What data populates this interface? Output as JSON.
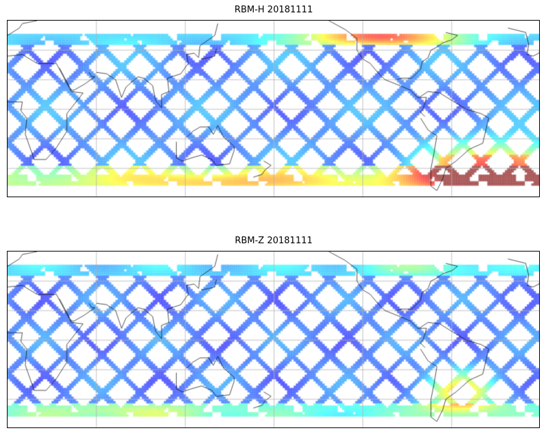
{
  "figure": {
    "panels": [
      {
        "title": "RBM-H 20181111",
        "field": "H"
      },
      {
        "title": "RBM-Z 20181111",
        "field": "Z"
      }
    ]
  },
  "chart_data": {
    "type": "heatmap",
    "projection": "plate carree",
    "lon_range": [
      0,
      360
    ],
    "lat_range": [
      -60,
      60
    ],
    "data_lat_extent": [
      -51,
      52
    ],
    "gridlines_lon": [
      60,
      120,
      180,
      240,
      300
    ],
    "gridlines_lat": [
      -40,
      -20,
      0,
      20,
      40
    ],
    "colormap": "jet",
    "alpha": 0.6,
    "panels": [
      {
        "title": "RBM-H 20181111",
        "high_regions": [
          "South Atlantic 30S-50S",
          "Southern band south of 40S",
          "North Pacific/N. America 45N-52N"
        ]
      },
      {
        "title": "RBM-Z 20181111",
        "high_regions": [
          "South Atlantic off South America 25S-45S (moderate)"
        ]
      }
    ]
  }
}
